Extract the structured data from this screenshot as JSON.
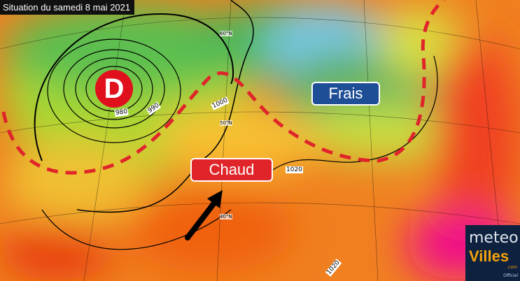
{
  "title": "Situation du samedi 8 mai 2021",
  "low_pressure": {
    "label": "D",
    "color": "#e0101c"
  },
  "zones": {
    "cool": {
      "label": "Frais",
      "color": "#1e4e96"
    },
    "warm": {
      "label": "Chaud",
      "color": "#e0252a"
    }
  },
  "isobars": [
    "980",
    "990",
    "1000",
    "1020",
    "1020"
  ],
  "latitudes": [
    "60°N",
    "50°N",
    "40°N"
  ],
  "logo": {
    "line1": "meteo",
    "line2": "Villes",
    "suffix": ".com",
    "badge": "Officiel"
  }
}
